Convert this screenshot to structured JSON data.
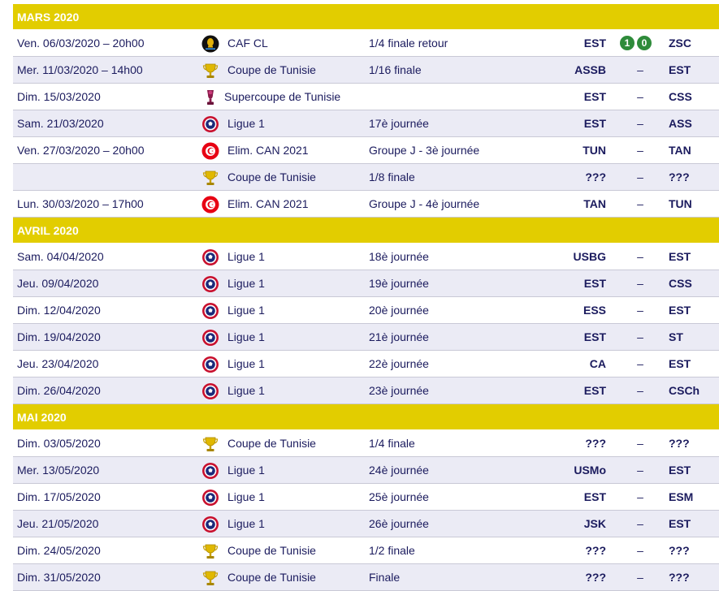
{
  "colors": {
    "month_bg": "#e2cd00",
    "row_alt": "#ebebf5",
    "text": "#1b1b5e",
    "score_bg": "#2e8b3a"
  },
  "months": [
    {
      "label": "MARS 2020",
      "rows": [
        {
          "date": "Ven. 06/03/2020 – 20h00",
          "icon": "caf-logo-icon",
          "competition": "CAF CL",
          "round": "1/4 finale retour",
          "home": "EST",
          "sep": "–",
          "score": [
            "1",
            "0"
          ],
          "away": "ZSC"
        },
        {
          "date": "Mer. 11/03/2020 – 14h00",
          "icon": "trophy-icon",
          "competition": "Coupe de Tunisie",
          "round": "1/16 finale",
          "home": "ASSB",
          "sep": "–",
          "away": "EST"
        },
        {
          "date": "Dim. 15/03/2020",
          "icon": "supercup-icon",
          "competition": "Supercoupe de Tunisie",
          "round": "",
          "home": "EST",
          "sep": "–",
          "away": "CSS"
        },
        {
          "date": "Sam. 21/03/2020",
          "icon": "league-ball-icon",
          "competition": "Ligue 1",
          "round": "17è journée",
          "home": "EST",
          "sep": "–",
          "away": "ASS"
        },
        {
          "date": "Ven. 27/03/2020 – 20h00",
          "icon": "tunisia-flag-icon",
          "competition": "Elim. CAN 2021",
          "round": "Groupe J - 3è journée",
          "home": "TUN",
          "sep": "–",
          "away": "TAN"
        },
        {
          "date": "",
          "icon": "trophy-icon",
          "competition": "Coupe de Tunisie",
          "round": "1/8 finale",
          "home": "???",
          "sep": "–",
          "away": "???"
        },
        {
          "date": "Lun. 30/03/2020 – 17h00",
          "icon": "tunisia-flag-icon",
          "competition": "Elim. CAN 2021",
          "round": "Groupe J - 4è journée",
          "home": "TAN",
          "sep": "–",
          "away": "TUN"
        }
      ]
    },
    {
      "label": "AVRIL 2020",
      "rows": [
        {
          "date": "Sam. 04/04/2020",
          "icon": "league-ball-icon",
          "competition": "Ligue 1",
          "round": "18è journée",
          "home": "USBG",
          "sep": "–",
          "away": "EST"
        },
        {
          "date": "Jeu. 09/04/2020",
          "icon": "league-ball-icon",
          "competition": "Ligue 1",
          "round": "19è journée",
          "home": "EST",
          "sep": "–",
          "away": "CSS"
        },
        {
          "date": "Dim. 12/04/2020",
          "icon": "league-ball-icon",
          "competition": "Ligue 1",
          "round": "20è journée",
          "home": "ESS",
          "sep": "–",
          "away": "EST"
        },
        {
          "date": "Dim. 19/04/2020",
          "icon": "league-ball-icon",
          "competition": "Ligue 1",
          "round": "21è journée",
          "home": "EST",
          "sep": "–",
          "away": "ST"
        },
        {
          "date": "Jeu. 23/04/2020",
          "icon": "league-ball-icon",
          "competition": "Ligue 1",
          "round": "22è journée",
          "home": "CA",
          "sep": "–",
          "away": "EST"
        },
        {
          "date": "Dim. 26/04/2020",
          "icon": "league-ball-icon",
          "competition": "Ligue 1",
          "round": "23è journée",
          "home": "EST",
          "sep": "–",
          "away": "CSCh"
        }
      ]
    },
    {
      "label": "MAI 2020",
      "rows": [
        {
          "date": "Dim. 03/05/2020",
          "icon": "trophy-icon",
          "competition": "Coupe de Tunisie",
          "round": "1/4 finale",
          "home": "???",
          "sep": "–",
          "away": "???"
        },
        {
          "date": "Mer. 13/05/2020",
          "icon": "league-ball-icon",
          "competition": "Ligue 1",
          "round": "24è journée",
          "home": "USMo",
          "sep": "–",
          "away": "EST"
        },
        {
          "date": "Dim. 17/05/2020",
          "icon": "league-ball-icon",
          "competition": "Ligue 1",
          "round": "25è journée",
          "home": "EST",
          "sep": "–",
          "away": "ESM"
        },
        {
          "date": "Jeu. 21/05/2020",
          "icon": "league-ball-icon",
          "competition": "Ligue 1",
          "round": "26è journée",
          "home": "JSK",
          "sep": "–",
          "away": "EST"
        },
        {
          "date": "Dim. 24/05/2020",
          "icon": "trophy-icon",
          "competition": "Coupe de Tunisie",
          "round": "1/2 finale",
          "home": "???",
          "sep": "–",
          "away": "???"
        },
        {
          "date": "Dim. 31/05/2020",
          "icon": "trophy-icon",
          "competition": "Coupe de Tunisie",
          "round": "Finale",
          "home": "???",
          "sep": "–",
          "away": "???"
        }
      ]
    }
  ]
}
